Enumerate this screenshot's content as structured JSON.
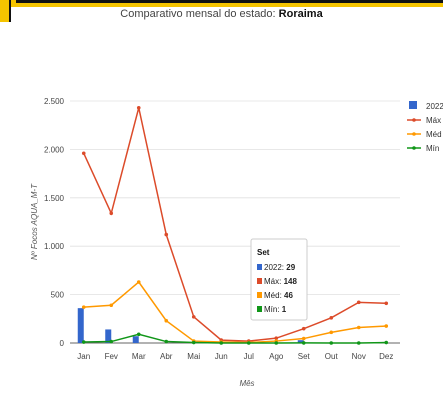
{
  "page": {
    "title_prefix": "Comparativo mensal do estado: ",
    "title_state": "Roraima"
  },
  "chart_data": {
    "type": "bar+line",
    "categories": [
      "Jan",
      "Fev",
      "Mar",
      "Abr",
      "Mai",
      "Jun",
      "Jul",
      "Ago",
      "Set",
      "Out",
      "Nov",
      "Dez"
    ],
    "ylabel": "Nº Focos AQUA_M-T",
    "xlabel": "Mês",
    "ylim": [
      0,
      2500
    ],
    "yticks": [
      0,
      500,
      1000,
      1500,
      2000,
      2500
    ],
    "ytick_labels": [
      "0",
      "500",
      "1.000",
      "1.500",
      "2.000",
      "2.500"
    ],
    "grid": true,
    "legend_position": "right",
    "series": [
      {
        "name": "2022",
        "kind": "bar",
        "color": "#3366cc",
        "values": [
          360,
          140,
          70,
          null,
          null,
          null,
          null,
          null,
          29,
          null,
          null,
          null
        ]
      },
      {
        "name": "Máx",
        "kind": "line",
        "color": "#dc4b2a",
        "values": [
          1960,
          1340,
          2430,
          1120,
          270,
          30,
          20,
          50,
          148,
          260,
          420,
          410
        ]
      },
      {
        "name": "Méd",
        "kind": "line",
        "color": "#ff9900",
        "values": [
          370,
          390,
          630,
          230,
          20,
          10,
          5,
          20,
          46,
          110,
          160,
          175
        ]
      },
      {
        "name": "Mín",
        "kind": "line",
        "color": "#109618",
        "values": [
          10,
          15,
          90,
          15,
          5,
          0,
          0,
          0,
          1,
          0,
          0,
          5
        ]
      }
    ],
    "tooltip": {
      "category": "Set",
      "rows": [
        {
          "label": "2022: ",
          "value": "29",
          "color": "#3366cc"
        },
        {
          "label": "Máx: ",
          "value": "148",
          "color": "#dc4b2a"
        },
        {
          "label": "Méd: ",
          "value": "46",
          "color": "#ff9900"
        },
        {
          "label": "Mín: ",
          "value": "1",
          "color": "#109618"
        }
      ]
    }
  }
}
